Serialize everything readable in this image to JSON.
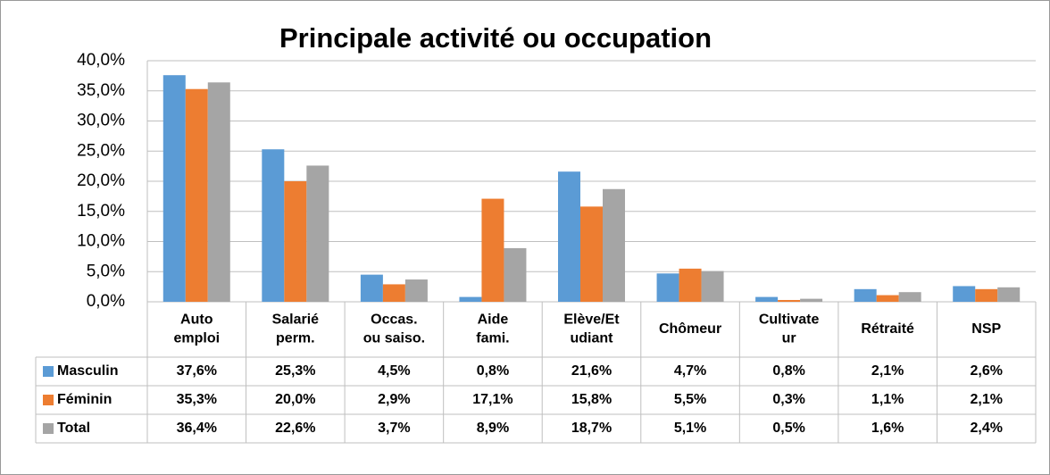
{
  "chart_data": {
    "type": "bar",
    "title": "Principale activité ou occupation",
    "categories": [
      "Auto\nemploi",
      "Salarié\nperm.",
      "Occas.\nou saiso.",
      "Aide\nfami.",
      "Elève/Et\nudiant",
      "Chômeur",
      "Cultivate\nur",
      "Rétraité",
      "NSP"
    ],
    "series": [
      {
        "name": "Masculin",
        "color": "#5b9bd5",
        "values": [
          37.6,
          25.3,
          4.5,
          0.8,
          21.6,
          4.7,
          0.8,
          2.1,
          2.6
        ],
        "value_labels": [
          "37,6%",
          "25,3%",
          "4,5%",
          "0,8%",
          "21,6%",
          "4,7%",
          "0,8%",
          "2,1%",
          "2,6%"
        ]
      },
      {
        "name": "Féminin",
        "color": "#ed7d31",
        "values": [
          35.3,
          20.0,
          2.9,
          17.1,
          15.8,
          5.5,
          0.3,
          1.1,
          2.1
        ],
        "value_labels": [
          "35,3%",
          "20,0%",
          "2,9%",
          "17,1%",
          "15,8%",
          "5,5%",
          "0,3%",
          "1,1%",
          "2,1%"
        ]
      },
      {
        "name": "Total",
        "color": "#a5a5a5",
        "values": [
          36.4,
          22.6,
          3.7,
          8.9,
          18.7,
          5.1,
          0.5,
          1.6,
          2.4
        ],
        "value_labels": [
          "36,4%",
          "22,6%",
          "3,7%",
          "8,9%",
          "18,7%",
          "5,1%",
          "0,5%",
          "1,6%",
          "2,4%"
        ]
      }
    ],
    "ylim": [
      0,
      40
    ],
    "yticks": [
      {
        "value": 0,
        "label": "0,0%"
      },
      {
        "value": 5,
        "label": "5,0%"
      },
      {
        "value": 10,
        "label": "10,0%"
      },
      {
        "value": 15,
        "label": "15,0%"
      },
      {
        "value": 20,
        "label": "20,0%"
      },
      {
        "value": 25,
        "label": "25,0%"
      },
      {
        "value": 30,
        "label": "30,0%"
      },
      {
        "value": 35,
        "label": "35,0%"
      },
      {
        "value": 40,
        "label": "40,0%"
      }
    ],
    "grid": true
  }
}
